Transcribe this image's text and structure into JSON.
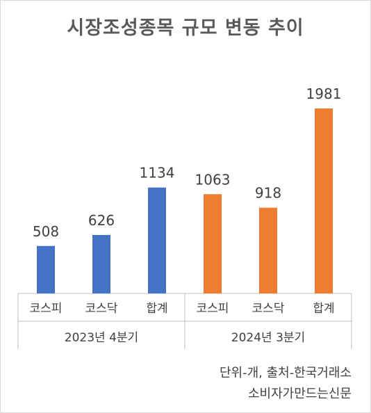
{
  "chart_data": {
    "type": "bar",
    "title": "시장조성종목 규모 변동 추이",
    "groups": [
      {
        "label": "2023년 4분기",
        "color": "#4472C4",
        "categories": [
          "코스피",
          "코스닥",
          "합계"
        ],
        "values": [
          508,
          626,
          1134
        ]
      },
      {
        "label": "2024년 3분기",
        "color": "#ED7D31",
        "categories": [
          "코스피",
          "코스닥",
          "합계"
        ],
        "values": [
          1063,
          918,
          1981
        ]
      }
    ],
    "ylim": [
      0,
      2000
    ],
    "grid": false,
    "legend": "none"
  },
  "notes": {
    "unit_source": "단위-개, 출처-한국거래소",
    "publisher": "소비자가만드는신문"
  }
}
